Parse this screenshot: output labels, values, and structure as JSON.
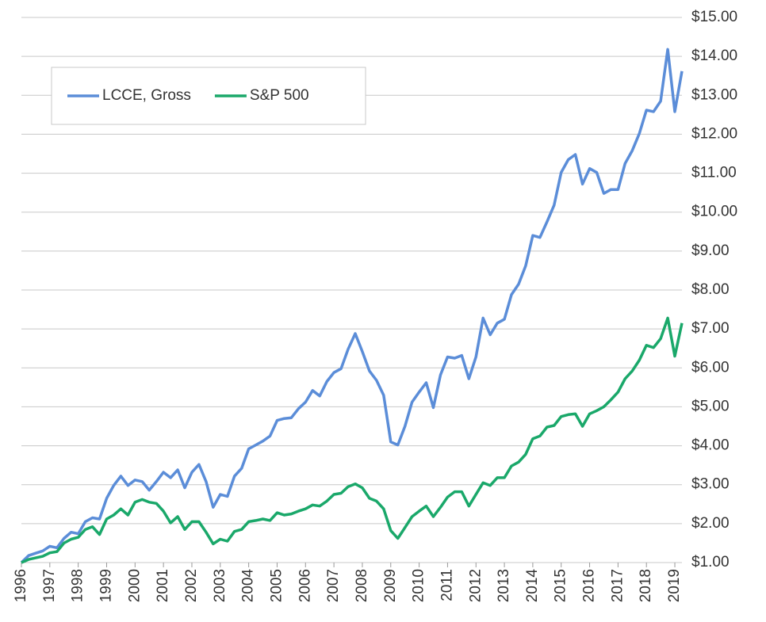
{
  "chart_data": {
    "type": "line",
    "x": [
      1996,
      1996.25,
      1996.5,
      1996.75,
      1997,
      1997.25,
      1997.5,
      1997.75,
      1998,
      1998.25,
      1998.5,
      1998.75,
      1999,
      1999.25,
      1999.5,
      1999.75,
      2000,
      2000.25,
      2000.5,
      2000.75,
      2001,
      2001.25,
      2001.5,
      2001.75,
      2002,
      2002.25,
      2002.5,
      2002.75,
      2003,
      2003.25,
      2003.5,
      2003.75,
      2004,
      2004.25,
      2004.5,
      2004.75,
      2005,
      2005.25,
      2005.5,
      2005.75,
      2006,
      2006.25,
      2006.5,
      2006.75,
      2007,
      2007.25,
      2007.5,
      2007.75,
      2008,
      2008.25,
      2008.5,
      2008.75,
      2009,
      2009.25,
      2009.5,
      2009.75,
      2010,
      2010.25,
      2010.5,
      2010.75,
      2011,
      2011.25,
      2011.5,
      2011.75,
      2012,
      2012.25,
      2012.5,
      2012.75,
      2013,
      2013.25,
      2013.5,
      2013.75,
      2014,
      2014.25,
      2014.5,
      2014.75,
      2015,
      2015.25,
      2015.5,
      2015.75,
      2016,
      2016.25,
      2016.5,
      2016.75,
      2017,
      2017.25,
      2017.5,
      2017.75,
      2018,
      2018.25,
      2018.5,
      2018.75,
      2019,
      2019.25
    ],
    "series": [
      {
        "name": "LCCE, Gross",
        "color": "#5b8dd8",
        "values": [
          1.0,
          1.18,
          1.24,
          1.3,
          1.42,
          1.38,
          1.62,
          1.78,
          1.74,
          2.05,
          2.15,
          2.12,
          2.65,
          2.98,
          3.22,
          2.98,
          3.12,
          3.08,
          2.86,
          3.08,
          3.32,
          3.18,
          3.38,
          2.92,
          3.32,
          3.52,
          3.08,
          2.42,
          2.75,
          2.7,
          3.22,
          3.42,
          3.92,
          4.02,
          4.12,
          4.25,
          4.65,
          4.7,
          4.72,
          4.95,
          5.12,
          5.42,
          5.28,
          5.65,
          5.88,
          5.98,
          6.48,
          6.88,
          6.42,
          5.92,
          5.68,
          5.3,
          4.1,
          4.02,
          4.5,
          5.12,
          5.38,
          5.62,
          4.98,
          5.82,
          6.28,
          6.25,
          6.32,
          5.72,
          6.28,
          7.28,
          6.85,
          7.15,
          7.25,
          7.88,
          8.15,
          8.62,
          9.4,
          9.35,
          9.75,
          10.18,
          11.02,
          11.35,
          11.48,
          10.72,
          11.12,
          11.02,
          10.48,
          10.58,
          10.58,
          11.25,
          11.58,
          12.02,
          12.62,
          12.58,
          12.85,
          14.18,
          12.58,
          13.62
        ]
      },
      {
        "name": "S&P 500",
        "color": "#1aa86a",
        "values": [
          1.0,
          1.08,
          1.12,
          1.16,
          1.25,
          1.28,
          1.5,
          1.6,
          1.65,
          1.85,
          1.92,
          1.72,
          2.12,
          2.22,
          2.38,
          2.22,
          2.55,
          2.62,
          2.55,
          2.52,
          2.32,
          2.02,
          2.18,
          1.85,
          2.05,
          2.05,
          1.78,
          1.48,
          1.6,
          1.55,
          1.8,
          1.85,
          2.05,
          2.08,
          2.12,
          2.08,
          2.28,
          2.22,
          2.25,
          2.32,
          2.38,
          2.48,
          2.45,
          2.58,
          2.75,
          2.78,
          2.95,
          3.02,
          2.92,
          2.65,
          2.58,
          2.38,
          1.82,
          1.62,
          1.9,
          2.18,
          2.32,
          2.45,
          2.18,
          2.42,
          2.68,
          2.82,
          2.82,
          2.45,
          2.75,
          3.05,
          2.98,
          3.18,
          3.18,
          3.48,
          3.58,
          3.78,
          4.18,
          4.25,
          4.48,
          4.52,
          4.75,
          4.8,
          4.82,
          4.5,
          4.82,
          4.9,
          5.0,
          5.18,
          5.38,
          5.72,
          5.92,
          6.2,
          6.58,
          6.52,
          6.75,
          7.28,
          6.3,
          7.15
        ]
      }
    ],
    "xlim": [
      1996,
      2019.25
    ],
    "xticks": [
      1996,
      1997,
      1998,
      1999,
      2000,
      2001,
      2002,
      2003,
      2004,
      2005,
      2006,
      2007,
      2008,
      2009,
      2010,
      2011,
      2012,
      2013,
      2014,
      2015,
      2016,
      2017,
      2018,
      2019
    ],
    "ylim": [
      1,
      15
    ],
    "yticks": [
      {
        "value": 1,
        "label": "$1.00"
      },
      {
        "value": 2,
        "label": "$2.00"
      },
      {
        "value": 3,
        "label": "$3.00"
      },
      {
        "value": 4,
        "label": "$4.00"
      },
      {
        "value": 5,
        "label": "$5.00"
      },
      {
        "value": 6,
        "label": "$6.00"
      },
      {
        "value": 7,
        "label": "$7.00"
      },
      {
        "value": 8,
        "label": "$8.00"
      },
      {
        "value": 9,
        "label": "$9.00"
      },
      {
        "value": 10,
        "label": "$10.00"
      },
      {
        "value": 11,
        "label": "$11.00"
      },
      {
        "value": 12,
        "label": "$12.00"
      },
      {
        "value": 13,
        "label": "$13.00"
      },
      {
        "value": 14,
        "label": "$14.00"
      },
      {
        "value": 15,
        "label": "$15.00"
      }
    ],
    "grid": true,
    "legend": "upper left"
  }
}
